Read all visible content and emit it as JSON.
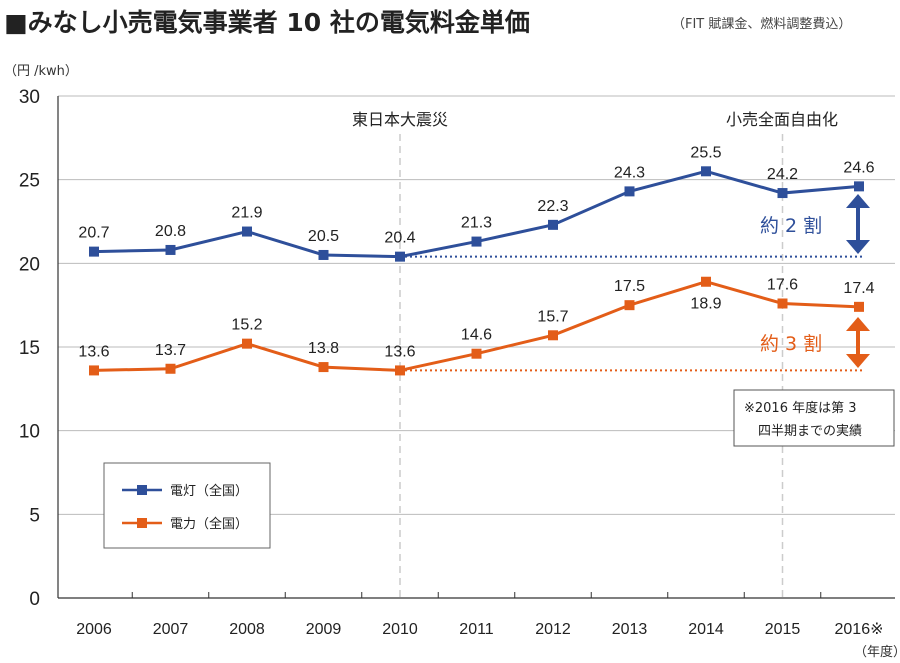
{
  "title": "■みなし小売電気事業者 10 社の電気料金単価",
  "subtitle": "（FIT 賦課金、燃料調整費込）",
  "ylabel": "（円 /kwh）",
  "xlabel": "（年度）",
  "annotations": {
    "earthquake": "東日本大震災",
    "liberalization": "小売全面自由化",
    "lighting_increase": "約 2 割",
    "power_increase": "約 3 割",
    "note_line1": "※2016 年度は第 3",
    "note_line2": "四半期までの実績"
  },
  "legend": {
    "lighting": "電灯（全国）",
    "power": "電力（全国）"
  },
  "colors": {
    "lighting": "#2e4f9a",
    "power": "#e35d18",
    "grid": "#bbbbbb",
    "dash": "#cccccc"
  },
  "chart_data": {
    "type": "line",
    "title": "■みなし小売電気事業者 10 社の電気料金単価",
    "categories": [
      "2006",
      "2007",
      "2008",
      "2009",
      "2010",
      "2011",
      "2012",
      "2013",
      "2014",
      "2015",
      "2016※"
    ],
    "yticks": [
      0,
      5,
      10,
      15,
      20,
      25,
      30
    ],
    "ylim": [
      0,
      30
    ],
    "series": [
      {
        "name": "電灯（全国）",
        "key": "lighting",
        "values": [
          20.7,
          20.8,
          21.9,
          20.5,
          20.4,
          21.3,
          22.3,
          24.3,
          25.5,
          24.2,
          24.6
        ],
        "labels": [
          "20.7",
          "20.8",
          "21.9",
          "20.5",
          "20.4",
          "21.3",
          "22.3",
          "24.3",
          "25.5",
          "24.2",
          "24.6"
        ]
      },
      {
        "name": "電力（全国）",
        "key": "power",
        "values": [
          13.6,
          13.7,
          15.2,
          13.8,
          13.6,
          14.6,
          15.7,
          17.5,
          18.9,
          17.6,
          17.4
        ],
        "labels": [
          "13.6",
          "13.7",
          "15.2",
          "13.8",
          "13.6",
          "14.6",
          "15.7",
          "17.5",
          "18.9",
          "17.6",
          "17.4"
        ]
      }
    ],
    "reference_lines": [
      {
        "series": "lighting",
        "value": 20.4,
        "from_category": "2010"
      },
      {
        "series": "power",
        "value": 13.6,
        "from_category": "2010"
      }
    ],
    "event_lines": [
      "2010",
      "2015"
    ]
  }
}
